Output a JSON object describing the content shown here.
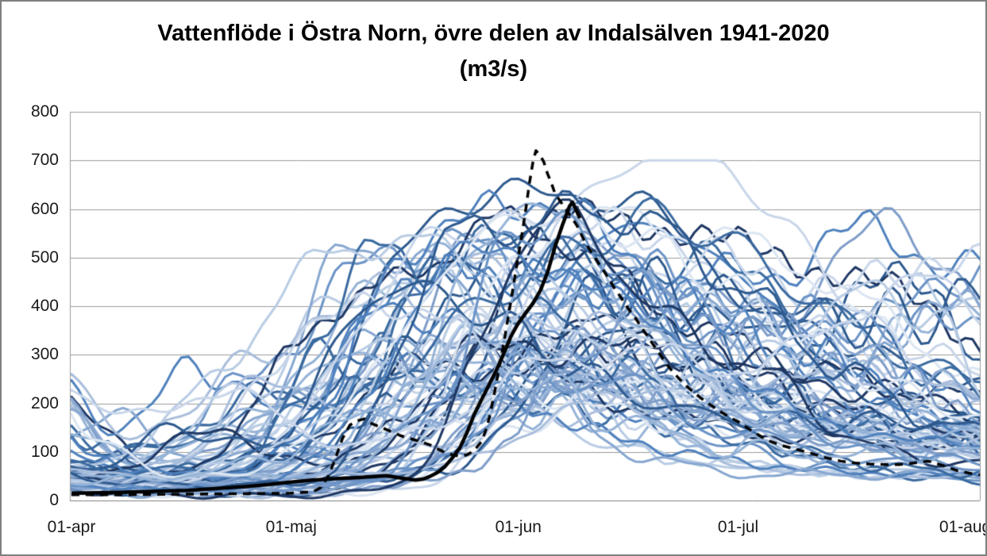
{
  "title": {
    "line1": "Vattenflöde i Östra Norn, övre delen av Indalsälven 1941-2020",
    "line2": "(m3/s)"
  },
  "chart_data": {
    "type": "line",
    "title": "Vattenflöde i Östra Norn, övre delen av Indalsälven 1941-2020 (m3/s)",
    "xlabel": "",
    "ylabel": "m3/s",
    "legend_position": "none",
    "grid": "horizontal",
    "ylim": [
      0,
      800
    ],
    "y_ticks": [
      0,
      100,
      200,
      300,
      400,
      500,
      600,
      700,
      800
    ],
    "x_tick_labels": [
      "01-apr",
      "01-maj",
      "01-jun",
      "01-jul",
      "01-aug"
    ],
    "x_tick_days": [
      0,
      30,
      61,
      91,
      122
    ],
    "x_range_days": [
      0,
      124
    ],
    "colors": {
      "highlight_solid": "#000000",
      "highlight_dashed": "#000000",
      "grid": "#9b9b9b",
      "axis": "#808080",
      "frame_border": "#7f7f7f",
      "background": "#ffffff"
    },
    "series": [
      {
        "name": "highlight-dashed-black",
        "style": "dashed",
        "dash": [
          10,
          8
        ],
        "color": "#000000",
        "width": 3.5,
        "points": [
          [
            0,
            12
          ],
          [
            8,
            12
          ],
          [
            16,
            13
          ],
          [
            24,
            14
          ],
          [
            30,
            15
          ],
          [
            33,
            18
          ],
          [
            34,
            26
          ],
          [
            35,
            48
          ],
          [
            36,
            85
          ],
          [
            37,
            128
          ],
          [
            38,
            155
          ],
          [
            39,
            164
          ],
          [
            40,
            168
          ],
          [
            41,
            158
          ],
          [
            43,
            146
          ],
          [
            45,
            133
          ],
          [
            47,
            124
          ],
          [
            49,
            114
          ],
          [
            50,
            106
          ],
          [
            51,
            99
          ],
          [
            52,
            94
          ],
          [
            53,
            91
          ],
          [
            54,
            94
          ],
          [
            55,
            103
          ],
          [
            56,
            122
          ],
          [
            56.5,
            142
          ],
          [
            57,
            168
          ],
          [
            57.5,
            203
          ],
          [
            58,
            242
          ],
          [
            58.5,
            282
          ],
          [
            59,
            322
          ],
          [
            59.5,
            367
          ],
          [
            60,
            412
          ],
          [
            60.5,
            458
          ],
          [
            61,
            503
          ],
          [
            61.5,
            548
          ],
          [
            62,
            597
          ],
          [
            62.5,
            652
          ],
          [
            63,
            697
          ],
          [
            63.4,
            720
          ],
          [
            64,
            710
          ],
          [
            64.5,
            696
          ],
          [
            65,
            672
          ],
          [
            65.5,
            654
          ],
          [
            66,
            632
          ],
          [
            67,
            610
          ],
          [
            68,
            588
          ],
          [
            69,
            566
          ],
          [
            70,
            535
          ],
          [
            71,
            510
          ],
          [
            72,
            487
          ],
          [
            73,
            465
          ],
          [
            74,
            440
          ],
          [
            75,
            418
          ],
          [
            76,
            395
          ],
          [
            77,
            375
          ],
          [
            78,
            352
          ],
          [
            79,
            330
          ],
          [
            80,
            308
          ],
          [
            81,
            286
          ],
          [
            82,
            266
          ],
          [
            83,
            250
          ],
          [
            84,
            235
          ],
          [
            85,
            222
          ],
          [
            86,
            210
          ],
          [
            87,
            199
          ],
          [
            88,
            189
          ],
          [
            89,
            179
          ],
          [
            90,
            170
          ],
          [
            91,
            162
          ],
          [
            92,
            152
          ],
          [
            93,
            142
          ],
          [
            95,
            124
          ],
          [
            97,
            113
          ],
          [
            99,
            105
          ],
          [
            101,
            97
          ],
          [
            103,
            88
          ],
          [
            105,
            81
          ],
          [
            107,
            77
          ],
          [
            109,
            75
          ],
          [
            111,
            74
          ],
          [
            113,
            74
          ],
          [
            115,
            77
          ],
          [
            117,
            81
          ],
          [
            119,
            72
          ],
          [
            121,
            61
          ],
          [
            123,
            55
          ],
          [
            124.5,
            52
          ]
        ]
      },
      {
        "name": "highlight-solid-black",
        "style": "solid",
        "dash": [],
        "color": "#000000",
        "width": 4.5,
        "points": [
          [
            0,
            15
          ],
          [
            4,
            16
          ],
          [
            8,
            17
          ],
          [
            12,
            19
          ],
          [
            16,
            21
          ],
          [
            20,
            25
          ],
          [
            24,
            29
          ],
          [
            27,
            33
          ],
          [
            30,
            38
          ],
          [
            33,
            42
          ],
          [
            36,
            45
          ],
          [
            39,
            47
          ],
          [
            41,
            49
          ],
          [
            43,
            51
          ],
          [
            45,
            46
          ],
          [
            47,
            42
          ],
          [
            48,
            44
          ],
          [
            49,
            50
          ],
          [
            50,
            58
          ],
          [
            51,
            70
          ],
          [
            52,
            88
          ],
          [
            53,
            108
          ],
          [
            54,
            140
          ],
          [
            55,
            178
          ],
          [
            56,
            208
          ],
          [
            57,
            238
          ],
          [
            58,
            268
          ],
          [
            59,
            302
          ],
          [
            60,
            338
          ],
          [
            61,
            365
          ],
          [
            62,
            386
          ],
          [
            63,
            406
          ],
          [
            64,
            432
          ],
          [
            65,
            470
          ],
          [
            66,
            522
          ],
          [
            67,
            566
          ],
          [
            68,
            606
          ],
          [
            68.4,
            614
          ],
          [
            68.9,
            598
          ],
          [
            69.4,
            581
          ]
        ]
      }
    ],
    "ensemble": {
      "name": "historical-year-hydrographs-1941-2020",
      "count": 80,
      "seed": 7,
      "line_width": 3,
      "palette": [
        "#1F3864",
        "#B8CCE4",
        "#4F81BD",
        "#DCE6F2",
        "#2E5A8F",
        "#95B3D7",
        "#6B93C6",
        "#C9D6EA",
        "#3A6AA0",
        "#A9BEDC",
        "#7F9DC9",
        "#87A7D1"
      ],
      "april_start_range": [
        8,
        270
      ],
      "peak_day_range": [
        36,
        76
      ],
      "peak_value_range": [
        130,
        565
      ],
      "august_tail_range": [
        25,
        150
      ]
    }
  }
}
